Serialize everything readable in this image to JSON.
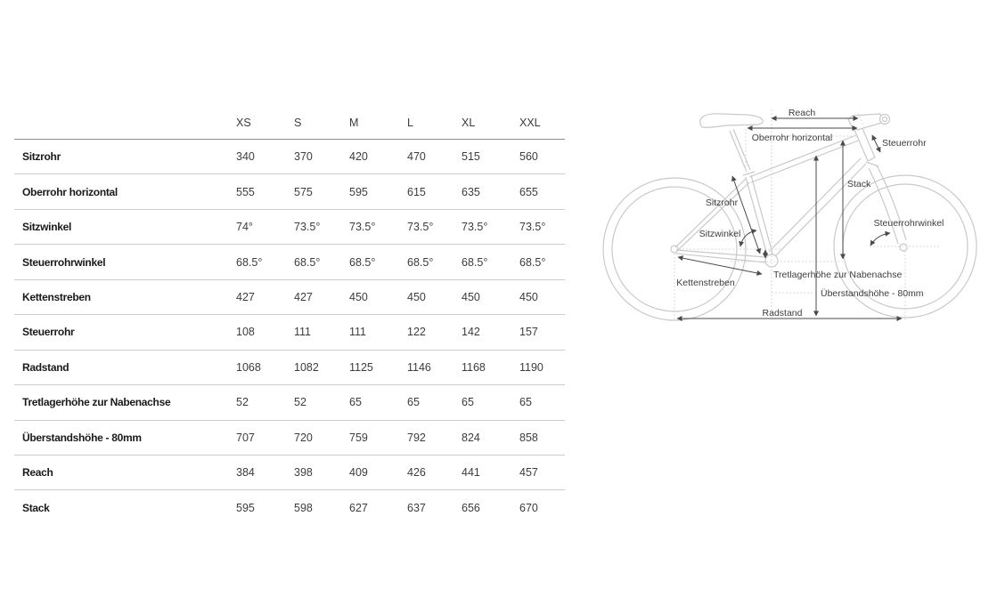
{
  "table": {
    "columns": [
      "XS",
      "S",
      "M",
      "L",
      "XL",
      "XXL"
    ],
    "rows": [
      {
        "label": "Sitzrohr",
        "values": [
          "340",
          "370",
          "420",
          "470",
          "515",
          "560"
        ]
      },
      {
        "label": "Oberrohr horizontal",
        "values": [
          "555",
          "575",
          "595",
          "615",
          "635",
          "655"
        ]
      },
      {
        "label": "Sitzwinkel",
        "values": [
          "74°",
          "73.5°",
          "73.5°",
          "73.5°",
          "73.5°",
          "73.5°"
        ]
      },
      {
        "label": "Steuerrohrwinkel",
        "values": [
          "68.5°",
          "68.5°",
          "68.5°",
          "68.5°",
          "68.5°",
          "68.5°"
        ]
      },
      {
        "label": "Kettenstreben",
        "values": [
          "427",
          "427",
          "450",
          "450",
          "450",
          "450"
        ]
      },
      {
        "label": "Steuerrohr",
        "values": [
          "108",
          "111",
          "111",
          "122",
          "142",
          "157"
        ]
      },
      {
        "label": "Radstand",
        "values": [
          "1068",
          "1082",
          "1125",
          "1146",
          "1168",
          "1190"
        ]
      },
      {
        "label": "Tretlagerhöhe zur Nabenachse",
        "values": [
          "52",
          "52",
          "65",
          "65",
          "65",
          "65"
        ]
      },
      {
        "label": "Überstandshöhe - 80mm",
        "values": [
          "707",
          "720",
          "759",
          "792",
          "824",
          "858"
        ]
      },
      {
        "label": "Reach",
        "values": [
          "384",
          "398",
          "409",
          "426",
          "441",
          "457"
        ]
      },
      {
        "label": "Stack",
        "values": [
          "595",
          "598",
          "627",
          "637",
          "656",
          "670"
        ]
      }
    ]
  },
  "diagram": {
    "labels": {
      "reach": "Reach",
      "oberrohr": "Oberrohr horizontal",
      "steuerrohr": "Steuerrohr",
      "stack": "Stack",
      "sitzrohr": "Sitzrohr",
      "sitzwinkel": "Sitzwinkel",
      "steuerrohrwinkel": "Steuerrohrwinkel",
      "kettenstreben": "Kettenstreben",
      "tretlagerhoehe": "Tretlagerhöhe zur Nabenachse",
      "ueberstandshoehe": "Überstandshöhe - 80mm",
      "radstand": "Radstand"
    }
  },
  "colors": {
    "row_label": "#1a1a1a",
    "value_text": "#3c3c3c",
    "header_divider": "#8e8e8e",
    "row_divider": "#cccccc",
    "bike_outline": "#c9c9c9",
    "construction_dotted": "#d9d9d9",
    "dimension_arrow": "#4a4a4a"
  },
  "chart_data": {
    "type": "table",
    "title": "Bike geometry",
    "columns": [
      "XS",
      "S",
      "M",
      "L",
      "XL",
      "XXL"
    ],
    "rows": [
      [
        "Sitzrohr",
        340,
        370,
        420,
        470,
        515,
        560
      ],
      [
        "Oberrohr horizontal",
        555,
        575,
        595,
        615,
        635,
        655
      ],
      [
        "Sitzwinkel",
        "74°",
        "73.5°",
        "73.5°",
        "73.5°",
        "73.5°",
        "73.5°"
      ],
      [
        "Steuerrohrwinkel",
        "68.5°",
        "68.5°",
        "68.5°",
        "68.5°",
        "68.5°",
        "68.5°"
      ],
      [
        "Kettenstreben",
        427,
        427,
        450,
        450,
        450,
        450
      ],
      [
        "Steuerrohr",
        108,
        111,
        111,
        122,
        142,
        157
      ],
      [
        "Radstand",
        1068,
        1082,
        1125,
        1146,
        1168,
        1190
      ],
      [
        "Tretlagerhöhe zur Nabenachse",
        52,
        52,
        65,
        65,
        65,
        65
      ],
      [
        "Überstandshöhe - 80mm",
        707,
        720,
        759,
        792,
        824,
        858
      ],
      [
        "Reach",
        384,
        398,
        409,
        426,
        441,
        457
      ],
      [
        "Stack",
        595,
        598,
        627,
        637,
        656,
        670
      ]
    ]
  }
}
